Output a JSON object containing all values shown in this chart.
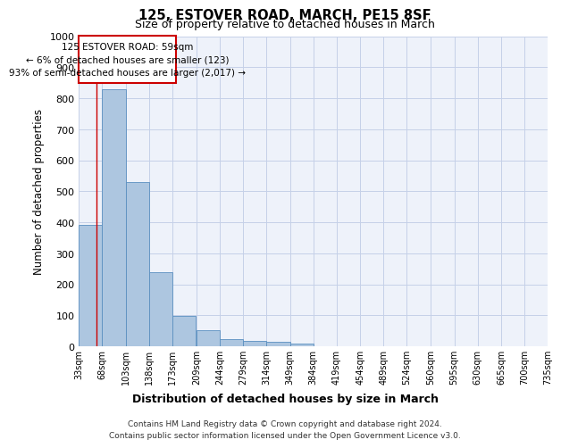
{
  "title": "125, ESTOVER ROAD, MARCH, PE15 8SF",
  "subtitle": "Size of property relative to detached houses in March",
  "xlabel": "Distribution of detached houses by size in March",
  "ylabel": "Number of detached properties",
  "bar_color": "#adc6e0",
  "bar_edge_color": "#5a8fc0",
  "background_color": "#eef2fa",
  "grid_color": "#c5d0e8",
  "annotation_box_color": "#cc0000",
  "annotation_line_color": "#cc0000",
  "bins": [
    33,
    68,
    103,
    138,
    173,
    209,
    244,
    279,
    314,
    349,
    384,
    419,
    454,
    489,
    524,
    560,
    595,
    630,
    665,
    700,
    735
  ],
  "bar_heights": [
    390,
    830,
    530,
    240,
    97,
    52,
    22,
    18,
    15,
    10,
    0,
    0,
    0,
    0,
    0,
    0,
    0,
    0,
    0,
    0
  ],
  "property_size": 59,
  "annotation_text": "125 ESTOVER ROAD: 59sqm\n← 6% of detached houses are smaller (123)\n93% of semi-detached houses are larger (2,017) →",
  "ylim": [
    0,
    1000
  ],
  "yticks": [
    0,
    100,
    200,
    300,
    400,
    500,
    600,
    700,
    800,
    900,
    1000
  ],
  "footer_line1": "Contains HM Land Registry data © Crown copyright and database right 2024.",
  "footer_line2": "Contains public sector information licensed under the Open Government Licence v3.0.",
  "tick_labels": [
    "33sqm",
    "68sqm",
    "103sqm",
    "138sqm",
    "173sqm",
    "209sqm",
    "244sqm",
    "279sqm",
    "314sqm",
    "349sqm",
    "384sqm",
    "419sqm",
    "454sqm",
    "489sqm",
    "524sqm",
    "560sqm",
    "595sqm",
    "630sqm",
    "665sqm",
    "700sqm",
    "735sqm"
  ]
}
